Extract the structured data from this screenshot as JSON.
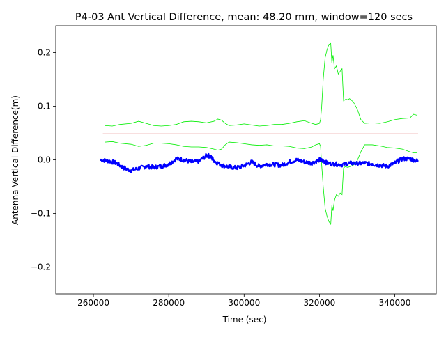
{
  "chart_data": {
    "type": "line",
    "title": "P4-03 Ant Vertical Difference, mean: 48.20 mm, window=120 secs",
    "xlabel": "Time (sec)",
    "ylabel": "Antenna Vertical Difference(m)",
    "xlim": [
      250000,
      351000
    ],
    "ylim": [
      -0.25,
      0.25
    ],
    "xticks": [
      260000,
      280000,
      300000,
      320000,
      340000
    ],
    "xtick_labels": [
      "260000",
      "280000",
      "300000",
      "320000",
      "340000"
    ],
    "yticks": [
      -0.2,
      -0.1,
      0.0,
      0.1,
      0.2
    ],
    "ytick_labels": [
      "−0.2",
      "−0.1",
      "0.0",
      "0.1",
      "0.2"
    ],
    "grid": false,
    "colors": {
      "upper_band": "#00ee00",
      "lower_band": "#00ee00",
      "mean": "#cc0000",
      "data": "#0000ff"
    },
    "series": [
      {
        "role": "upper_band",
        "x": [
          263000,
          265000,
          267000,
          270000,
          272000,
          274000,
          276000,
          278000,
          280000,
          282000,
          284000,
          286000,
          288000,
          290000,
          292000,
          293000,
          294000,
          295000,
          296000,
          298000,
          300000,
          302000,
          304000,
          306000,
          308000,
          310000,
          312000,
          314000,
          316000,
          318000,
          319000,
          320000,
          320300,
          320600,
          321000,
          321500,
          322000,
          322500,
          323000,
          323300,
          323600,
          324000,
          324500,
          325000,
          325500,
          326000,
          326400,
          326800,
          327000,
          327500,
          328000,
          329000,
          330000,
          331000,
          332000,
          334000,
          336000,
          338000,
          340000,
          342000,
          344000,
          345000,
          346000
        ],
        "values": [
          0.064,
          0.063,
          0.066,
          0.068,
          0.072,
          0.068,
          0.064,
          0.063,
          0.064,
          0.066,
          0.071,
          0.072,
          0.071,
          0.069,
          0.072,
          0.076,
          0.074,
          0.068,
          0.064,
          0.065,
          0.067,
          0.065,
          0.063,
          0.064,
          0.066,
          0.066,
          0.068,
          0.071,
          0.073,
          0.068,
          0.066,
          0.068,
          0.075,
          0.1,
          0.15,
          0.19,
          0.205,
          0.215,
          0.217,
          0.18,
          0.195,
          0.17,
          0.175,
          0.16,
          0.165,
          0.17,
          0.11,
          0.112,
          0.113,
          0.112,
          0.114,
          0.108,
          0.095,
          0.075,
          0.068,
          0.069,
          0.068,
          0.071,
          0.075,
          0.077,
          0.078,
          0.085,
          0.083
        ]
      },
      {
        "role": "lower_band",
        "x": [
          263000,
          265000,
          267000,
          270000,
          272000,
          274000,
          276000,
          278000,
          280000,
          282000,
          284000,
          286000,
          288000,
          290000,
          292000,
          293000,
          294000,
          295000,
          296000,
          298000,
          300000,
          302000,
          304000,
          306000,
          308000,
          310000,
          312000,
          314000,
          316000,
          318000,
          319000,
          320000,
          320300,
          320600,
          321000,
          321500,
          322000,
          322500,
          323000,
          323300,
          323600,
          324000,
          324500,
          325000,
          325500,
          326000,
          326400,
          326800,
          327000,
          327500,
          328000,
          329000,
          330000,
          331000,
          332000,
          334000,
          336000,
          338000,
          340000,
          342000,
          344000,
          345000,
          346000
        ],
        "values": [
          0.033,
          0.034,
          0.031,
          0.029,
          0.025,
          0.027,
          0.031,
          0.031,
          0.03,
          0.028,
          0.025,
          0.024,
          0.024,
          0.023,
          0.02,
          0.018,
          0.02,
          0.028,
          0.033,
          0.032,
          0.03,
          0.028,
          0.027,
          0.028,
          0.026,
          0.026,
          0.025,
          0.022,
          0.021,
          0.024,
          0.028,
          0.03,
          0.025,
          -0.01,
          -0.05,
          -0.09,
          -0.105,
          -0.115,
          -0.12,
          -0.085,
          -0.095,
          -0.075,
          -0.065,
          -0.068,
          -0.062,
          -0.065,
          -0.015,
          -0.013,
          -0.013,
          -0.014,
          -0.013,
          -0.01,
          -0.002,
          0.015,
          0.028,
          0.028,
          0.026,
          0.023,
          0.022,
          0.02,
          0.015,
          0.013,
          0.013
        ]
      },
      {
        "role": "mean",
        "x": [
          262500,
          346200
        ],
        "values": [
          0.0482,
          0.0482
        ]
      },
      {
        "role": "data",
        "x": [
          262000,
          264000,
          266000,
          268000,
          270000,
          272000,
          274000,
          276000,
          278000,
          280000,
          282000,
          284000,
          286000,
          288000,
          290000,
          291000,
          292000,
          294000,
          296000,
          298000,
          300000,
          302000,
          304000,
          306000,
          308000,
          310000,
          312000,
          314000,
          316000,
          318000,
          320000,
          321000,
          322000,
          324000,
          326000,
          328000,
          330000,
          332000,
          334000,
          336000,
          338000,
          340000,
          342000,
          344000,
          346000
        ],
        "values": [
          0.0,
          -0.002,
          -0.006,
          -0.015,
          -0.02,
          -0.016,
          -0.012,
          -0.014,
          -0.012,
          -0.008,
          0.002,
          0.0,
          -0.004,
          -0.003,
          0.008,
          0.007,
          -0.002,
          -0.01,
          -0.013,
          -0.015,
          -0.011,
          -0.004,
          -0.012,
          -0.008,
          -0.009,
          -0.01,
          -0.004,
          0.0,
          -0.004,
          -0.006,
          0.0,
          -0.002,
          -0.006,
          -0.008,
          -0.009,
          -0.006,
          -0.007,
          -0.006,
          -0.008,
          -0.01,
          -0.012,
          -0.006,
          0.002,
          0.002,
          -0.002
        ]
      }
    ]
  }
}
